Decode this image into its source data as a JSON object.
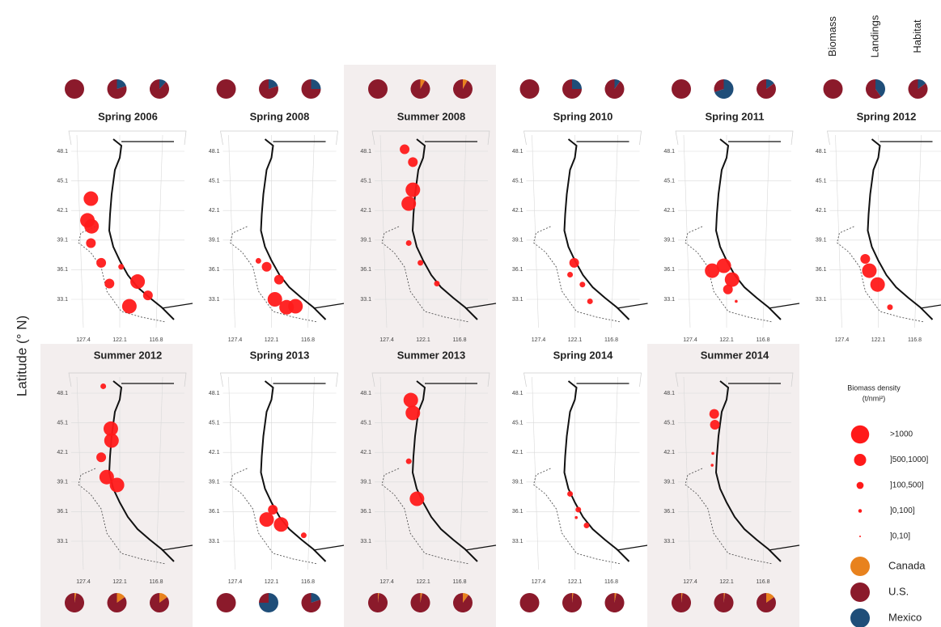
{
  "y_label": "Latitude (° N)",
  "pie_headers": [
    "Biomass",
    "Landings",
    "Habitat"
  ],
  "lat_ticks": [
    48.1,
    45.1,
    42.1,
    39.1,
    36.1,
    33.1
  ],
  "lon_ticks": [
    127.4,
    122.1,
    116.8
  ],
  "bubble_color": "#ff1a1a",
  "legend_title": [
    "Biomass density",
    "(t/nmi²)"
  ],
  "density_classes": [
    ">1000",
    "]500,1000]",
    "]100,500]",
    "]0,100]",
    "]0,10]"
  ],
  "countries": [
    {
      "name": "Canada",
      "color": "#e8821e"
    },
    {
      "name": "U.S.",
      "color": "#8b1a2b"
    },
    {
      "name": "Mexico",
      "color": "#1f4e79"
    }
  ],
  "panels": [
    {
      "title": "Spring 2006",
      "highlight": false,
      "pies": [
        [
          0,
          100,
          0
        ],
        [
          0,
          80,
          20
        ],
        [
          0,
          88,
          12
        ]
      ],
      "bubbles": [
        [
          126.3,
          43.3,
          0
        ],
        [
          126.8,
          41.1,
          0
        ],
        [
          126.2,
          40.5,
          0
        ],
        [
          126.3,
          38.8,
          1
        ],
        [
          123.6,
          34.7,
          1
        ],
        [
          120.7,
          32.4,
          0
        ],
        [
          119.5,
          34.9,
          0
        ],
        [
          118.0,
          33.5,
          1
        ],
        [
          124.8,
          36.8,
          1
        ],
        [
          121.9,
          36.4,
          2
        ]
      ]
    },
    {
      "title": "Spring 2008",
      "highlight": false,
      "pies": [
        [
          0,
          100,
          0
        ],
        [
          0,
          80,
          20
        ],
        [
          0,
          75,
          25
        ]
      ],
      "bubbles": [
        [
          119.9,
          32.3,
          0
        ],
        [
          118.6,
          32.4,
          0
        ],
        [
          121.6,
          33.1,
          0
        ],
        [
          122.8,
          36.4,
          1
        ],
        [
          121.0,
          35.1,
          1
        ],
        [
          124.0,
          37.0,
          2
        ]
      ]
    },
    {
      "title": "Summer 2008",
      "highlight": true,
      "pies": [
        [
          0,
          100,
          0
        ],
        [
          8,
          92,
          0
        ],
        [
          8,
          92,
          0
        ]
      ],
      "bubbles": [
        [
          124.2,
          42.8,
          0
        ],
        [
          123.6,
          44.2,
          0
        ],
        [
          123.6,
          47.0,
          1
        ],
        [
          124.8,
          48.3,
          1
        ],
        [
          124.2,
          38.8,
          2
        ],
        [
          122.5,
          36.8,
          2
        ],
        [
          120.1,
          34.7,
          2
        ]
      ]
    },
    {
      "title": "Spring 2010",
      "highlight": false,
      "pies": [
        [
          0,
          100,
          0
        ],
        [
          0,
          75,
          25
        ],
        [
          0,
          90,
          10
        ]
      ],
      "bubbles": [
        [
          122.2,
          36.8,
          1
        ],
        [
          122.8,
          35.6,
          2
        ],
        [
          119.9,
          32.9,
          2
        ],
        [
          121.0,
          34.6,
          2
        ]
      ]
    },
    {
      "title": "Spring 2011",
      "highlight": false,
      "pies": [
        [
          0,
          100,
          0
        ],
        [
          0,
          30,
          70
        ],
        [
          0,
          85,
          15
        ]
      ],
      "bubbles": [
        [
          122.5,
          36.5,
          0
        ],
        [
          121.3,
          35.1,
          0
        ],
        [
          124.2,
          36.0,
          0
        ],
        [
          121.9,
          34.1,
          1
        ],
        [
          120.7,
          32.9,
          3
        ]
      ]
    },
    {
      "title": "Spring 2012",
      "highlight": false,
      "pies": [
        [
          0,
          100,
          0
        ],
        [
          0,
          60,
          40
        ],
        [
          0,
          85,
          15
        ]
      ],
      "bubbles": [
        [
          123.4,
          36.0,
          0
        ],
        [
          122.2,
          34.6,
          0
        ],
        [
          124.0,
          37.2,
          1
        ],
        [
          120.4,
          32.3,
          2
        ]
      ]
    },
    {
      "title": "Summer 2012",
      "highlight": true,
      "pies": [
        [
          3,
          97,
          0
        ],
        [
          15,
          85,
          0
        ],
        [
          15,
          85,
          0
        ]
      ],
      "bubbles": [
        [
          124.5,
          48.8,
          2
        ],
        [
          123.4,
          44.5,
          0
        ],
        [
          123.3,
          43.3,
          0
        ],
        [
          124.0,
          39.6,
          0
        ],
        [
          122.5,
          38.8,
          0
        ],
        [
          124.8,
          41.6,
          1
        ]
      ]
    },
    {
      "title": "Spring 2013",
      "highlight": false,
      "pies": [
        [
          0,
          100,
          0
        ],
        [
          0,
          25,
          75
        ],
        [
          0,
          80,
          20
        ]
      ],
      "bubbles": [
        [
          122.8,
          35.3,
          0
        ],
        [
          120.7,
          34.8,
          0
        ],
        [
          117.4,
          33.7,
          2
        ],
        [
          121.9,
          36.3,
          1
        ]
      ]
    },
    {
      "title": "Summer 2013",
      "highlight": true,
      "pies": [
        [
          2,
          98,
          0
        ],
        [
          3,
          97,
          0
        ],
        [
          10,
          90,
          0
        ]
      ],
      "bubbles": [
        [
          123.9,
          47.4,
          0
        ],
        [
          123.6,
          46.1,
          0
        ],
        [
          123.0,
          37.4,
          0
        ],
        [
          124.2,
          41.2,
          2
        ]
      ]
    },
    {
      "title": "Spring 2014",
      "highlight": false,
      "pies": [
        [
          0,
          100,
          0
        ],
        [
          2,
          98,
          0
        ],
        [
          3,
          97,
          0
        ]
      ],
      "bubbles": [
        [
          122.8,
          37.9,
          2
        ],
        [
          121.6,
          36.3,
          2
        ],
        [
          120.4,
          34.7,
          2
        ],
        [
          121.9,
          35.5,
          3
        ]
      ]
    },
    {
      "title": "Summer 2014",
      "highlight": true,
      "pies": [
        [
          2,
          98,
          0
        ],
        [
          2,
          98,
          0
        ],
        [
          15,
          85,
          0
        ]
      ],
      "bubbles": [
        [
          123.9,
          46.0,
          1
        ],
        [
          123.8,
          44.9,
          1
        ],
        [
          124.2,
          40.8,
          3
        ],
        [
          124.1,
          42.0,
          3
        ]
      ]
    }
  ]
}
